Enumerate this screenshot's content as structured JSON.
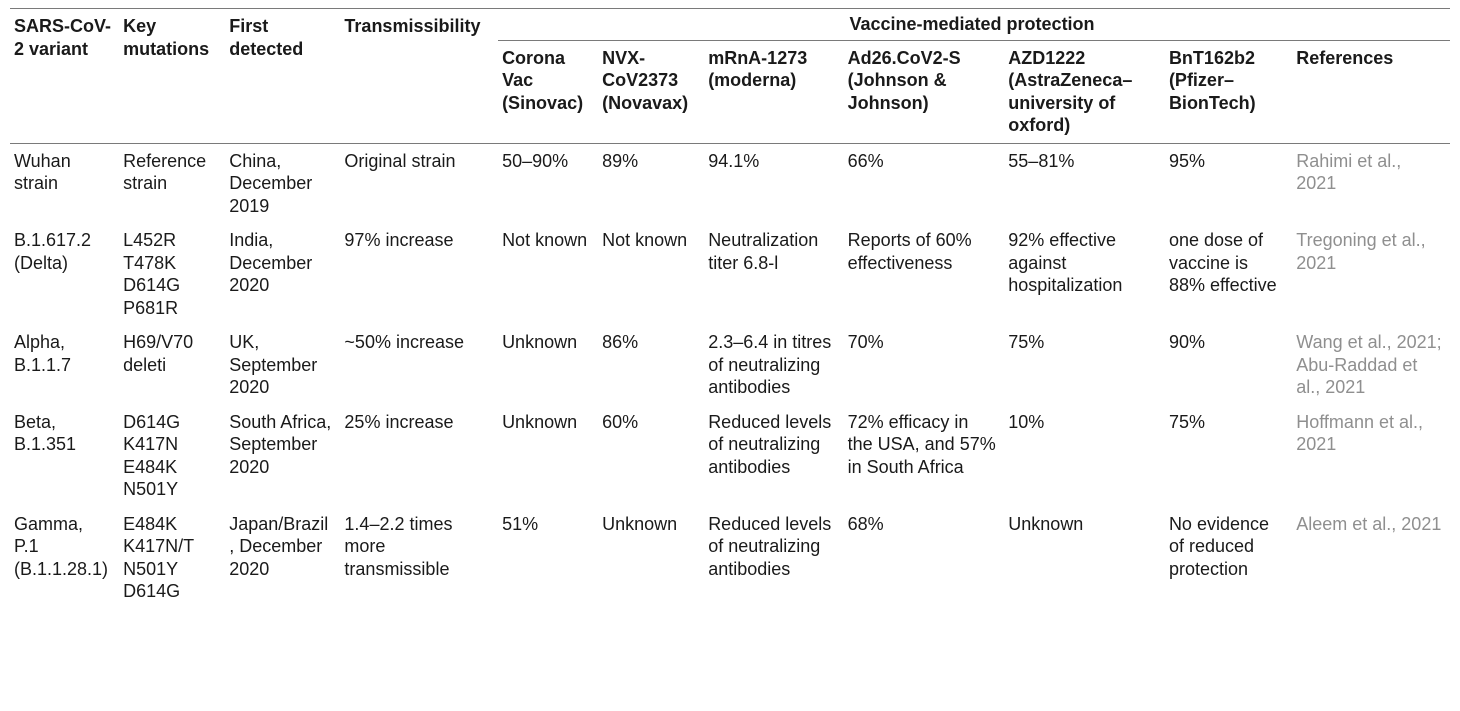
{
  "headers": {
    "variant": "SARS-CoV-2 variant",
    "mutations": "Key mutations",
    "detected": "First detected",
    "transmissibility": "Transmissibility",
    "spanner": "Vaccine-mediated protection",
    "sub": {
      "sinovac": "Corona Vac (Sinovac)",
      "novavax": "NVX-CoV2373 (Novavax)",
      "moderna": "mRnA-1273 (moderna)",
      "jj": "Ad26.CoV2-S (Johnson & Johnson)",
      "azd": "AZD1222 (AstraZeneca–university of oxford)",
      "pfizer": "BnT162b2 (Pfizer–BionTech)",
      "refs": "References"
    }
  },
  "rows": [
    {
      "variant": "Wuhan strain",
      "mutations": "Reference strain",
      "detected": "China, December 2019",
      "transmissibility": "Original strain",
      "sinovac": "50–90%",
      "novavax": "89%",
      "moderna": "94.1%",
      "jj": "66%",
      "azd": "55–81%",
      "pfizer": "95%",
      "refs": "Rahimi et al., 2021"
    },
    {
      "variant": "B.1.617.2 (Delta)",
      "mutations": "L452R T478K D614G P681R",
      "detected": "India, December 2020",
      "transmissibility": "97% increase",
      "sinovac": "Not known",
      "novavax": "Not known",
      "moderna": "Neutralization titer 6.8-l",
      "jj": "Reports of 60% effectiveness",
      "azd": "92% effective against hospitalization",
      "pfizer": "one dose of vaccine is 88% effective",
      "refs": "Tregoning et al., 2021"
    },
    {
      "variant": "Alpha, B.1.1.7",
      "mutations": "H69/V70 deleti",
      "detected": "UK, September 2020",
      "transmissibility": "~50% increase",
      "sinovac": "Unknown",
      "novavax": "86%",
      "moderna": "2.3–6.4 in titres of neutralizing antibodies",
      "jj": "70%",
      "azd": "75%",
      "pfizer": "90%",
      "refs": "Wang et al., 2021; Abu-Raddad et al., 2021"
    },
    {
      "variant": "Beta, B.1.351",
      "mutations": "D614G K417N E484K N501Y",
      "detected": "South Africa, September 2020",
      "transmissibility": "25% increase",
      "sinovac": "Unknown",
      "novavax": "60%",
      "moderna": "Reduced levels of neutralizing antibodies",
      "jj": "72% efficacy in the USA, and 57% in South Africa",
      "azd": "10%",
      "pfizer": "75%",
      "refs": "Hoffmann et al., 2021"
    },
    {
      "variant": "Gamma, P.1 (B.1.1.28.1)",
      "mutations": "E484K K417N/T N501Y D614G",
      "detected": "Japan/Brazil, December 2020",
      "transmissibility": "1.4–2.2 times more transmissible",
      "sinovac": "51%",
      "novavax": "Unknown",
      "moderna": "Reduced levels of neutralizing antibodies",
      "jj": "68%",
      "azd": "Unknown",
      "pfizer": "No evidence of reduced protection",
      "refs": "Aleem et al., 2021"
    }
  ]
}
